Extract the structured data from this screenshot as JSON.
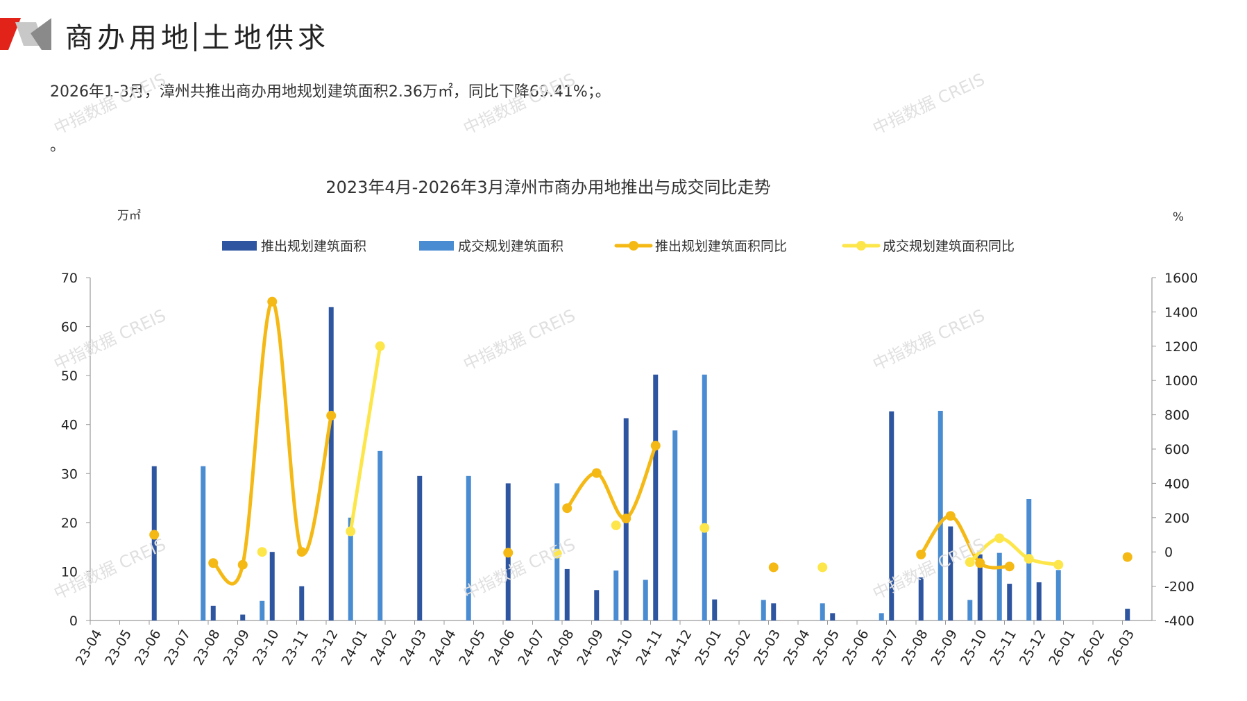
{
  "page": {
    "title_left": "商办用地",
    "title_right": "土地供求",
    "summary": "2026年1-3月，漳州共推出商办用地规划建筑面积2.36万㎡，同比下降69.41%；。",
    "summary2": "。",
    "watermark": "中指数据 CREIS"
  },
  "colors": {
    "accent_red": "#e2231a",
    "bar_supply": "#2e55a0",
    "bar_deal": "#4a8cd2",
    "line_supply": "#f5b915",
    "line_deal": "#fde64a"
  },
  "chart_data": {
    "type": "bar",
    "title": "2023年4月-2026年3月漳州市商办用地推出与成交同比走势",
    "ylabel_left": "万㎡",
    "ylabel_right": "%",
    "ylim_left": [
      0,
      70
    ],
    "yticks_left": [
      0,
      10,
      20,
      30,
      40,
      50,
      60,
      70
    ],
    "ylim_right": [
      -400,
      1600
    ],
    "yticks_right": [
      -400,
      -200,
      0,
      200,
      400,
      600,
      800,
      1000,
      1200,
      1400,
      1600
    ],
    "legend_position": "top",
    "categories": [
      "23-04",
      "23-05",
      "23-06",
      "23-07",
      "23-08",
      "23-09",
      "23-10",
      "23-11",
      "23-12",
      "24-01",
      "24-02",
      "24-03",
      "24-04",
      "24-05",
      "24-06",
      "24-07",
      "24-08",
      "24-09",
      "24-10",
      "24-11",
      "24-12",
      "25-01",
      "25-02",
      "25-03",
      "25-04",
      "25-05",
      "25-06",
      "25-07",
      "25-08",
      "25-09",
      "25-10",
      "25-11",
      "25-12",
      "26-01",
      "26-02",
      "26-03"
    ],
    "series": [
      {
        "name": "推出规划建筑面积",
        "kind": "bar",
        "axis": "left",
        "values": [
          0,
          0,
          31.5,
          0,
          3,
          1.2,
          14,
          7,
          64,
          0,
          0,
          29.5,
          0,
          0,
          28,
          0,
          10.5,
          6.2,
          41.3,
          50.2,
          0,
          4.3,
          0,
          3.5,
          0,
          1.5,
          0,
          42.7,
          8.8,
          19.2,
          13.5,
          7.5,
          7.8,
          0,
          0,
          2.4
        ]
      },
      {
        "name": "成交规划建筑面积",
        "kind": "bar",
        "axis": "left",
        "values": [
          0,
          0,
          0,
          31.5,
          0,
          4,
          0,
          0,
          21,
          34.6,
          0,
          0,
          29.5,
          0,
          0,
          28,
          0,
          10.2,
          8.3,
          38.8,
          50.2,
          0,
          4.2,
          0,
          3.5,
          0,
          1.5,
          0,
          42.8,
          4.2,
          13.8,
          24.8,
          10.3,
          0,
          0,
          0
        ]
      },
      {
        "name": "推出规划建筑面积同比",
        "kind": "line",
        "axis": "right",
        "values": [
          null,
          null,
          100,
          null,
          -65,
          -75,
          1460,
          0,
          795,
          null,
          null,
          null,
          null,
          null,
          -5,
          null,
          255,
          460,
          195,
          620,
          null,
          null,
          null,
          -90,
          null,
          null,
          null,
          null,
          -15,
          210,
          -65,
          -85,
          null,
          null,
          null,
          -30
        ]
      },
      {
        "name": "成交规划建筑面积同比",
        "kind": "line",
        "axis": "right",
        "values": [
          null,
          null,
          null,
          null,
          null,
          0,
          null,
          null,
          120,
          1200,
          null,
          null,
          null,
          null,
          null,
          -10,
          null,
          155,
          null,
          null,
          140,
          null,
          null,
          null,
          -90,
          null,
          null,
          null,
          null,
          -60,
          80,
          -40,
          -75,
          null,
          null,
          null
        ]
      }
    ]
  }
}
